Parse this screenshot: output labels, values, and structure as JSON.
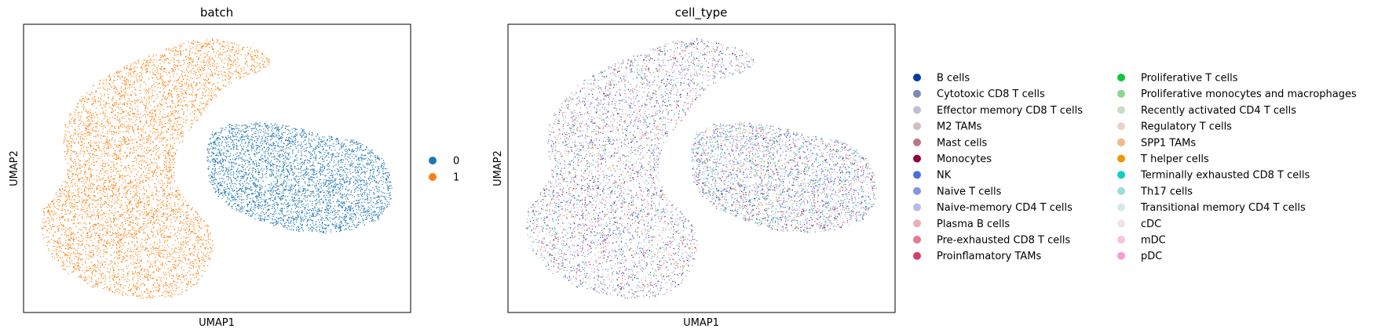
{
  "chart_data": [
    {
      "type": "scatter",
      "title": "batch",
      "xlabel": "UMAP1",
      "ylabel": "UMAP2",
      "grid": false,
      "legend_position": "right",
      "series": [
        {
          "name": "0",
          "color": "#1f77b4",
          "x": [
            9.8,
            13.2
          ],
          "y": [
            2.5,
            6.5
          ]
        },
        {
          "name": "1",
          "color": "#ff7f0e",
          "x": [
            -4.5,
            3.5
          ],
          "y": [
            -7.5,
            9.0
          ]
        }
      ]
    },
    {
      "type": "scatter",
      "title": "cell_type",
      "xlabel": "UMAP1",
      "ylabel": "UMAP2",
      "grid": false,
      "legend_position": "right",
      "legend_columns": 2,
      "series": [
        {
          "name": "B cells",
          "color": "#023fa5"
        },
        {
          "name": "Cytotoxic CD8 T cells",
          "color": "#7d87b9"
        },
        {
          "name": "Effector memory CD8 T cells",
          "color": "#bec1d4"
        },
        {
          "name": "M2 TAMs",
          "color": "#d6bcc0"
        },
        {
          "name": "Mast cells",
          "color": "#bb7784"
        },
        {
          "name": "Monocytes",
          "color": "#8e063b"
        },
        {
          "name": "NK",
          "color": "#4a6fe3"
        },
        {
          "name": "Naive T cells",
          "color": "#8595e1"
        },
        {
          "name": "Naive-memory CD4 T cells",
          "color": "#b5bbe3"
        },
        {
          "name": "Plasma B cells",
          "color": "#e6afb9"
        },
        {
          "name": "Pre-exhausted CD8 T cells",
          "color": "#e07b91"
        },
        {
          "name": "Proinflamatory TAMs",
          "color": "#d33f6a"
        },
        {
          "name": "Proliferative T cells",
          "color": "#11c638"
        },
        {
          "name": "Proliferative monocytes and macrophages",
          "color": "#8dd593"
        },
        {
          "name": "Recently activated CD4 T cells",
          "color": "#c6dec7"
        },
        {
          "name": "Regulatory T cells",
          "color": "#ead3c6"
        },
        {
          "name": "SPP1 TAMs",
          "color": "#f0b98d"
        },
        {
          "name": "T helper cells",
          "color": "#ef9708"
        },
        {
          "name": "Terminally exhausted CD8 T cells",
          "color": "#0fcfc0"
        },
        {
          "name": "Th17 cells",
          "color": "#9cded6"
        },
        {
          "name": "Transitional memory CD4 T cells",
          "color": "#d5eae7"
        },
        {
          "name": "cDC",
          "color": "#f3e1eb"
        },
        {
          "name": "mDC",
          "color": "#f6c4e1"
        },
        {
          "name": "pDC",
          "color": "#f79cd4"
        }
      ]
    }
  ]
}
